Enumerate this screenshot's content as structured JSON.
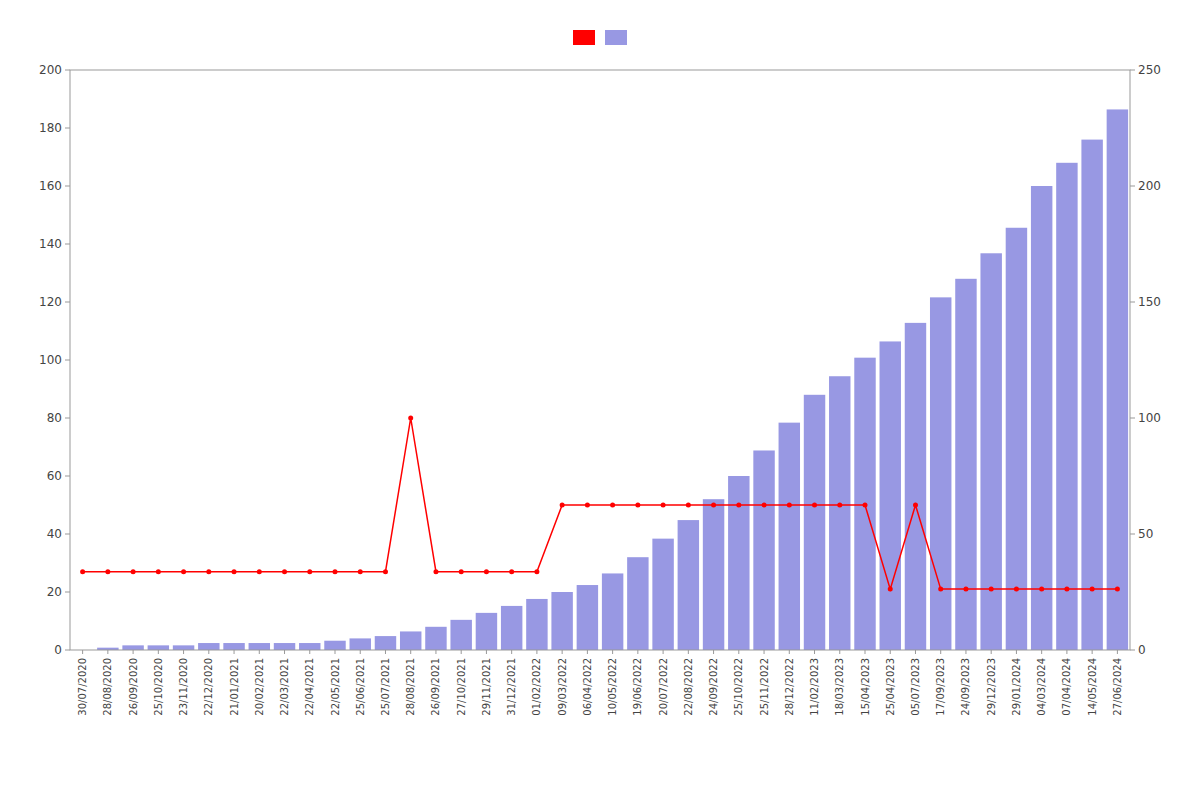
{
  "chart_data": {
    "type": "bar",
    "categories": [
      "30/07/2020",
      "28/08/2020",
      "26/09/2020",
      "25/10/2020",
      "23/11/2020",
      "22/12/2020",
      "21/01/2021",
      "20/02/2021",
      "22/03/2021",
      "22/04/2021",
      "22/05/2021",
      "25/06/2021",
      "25/07/2021",
      "28/08/2021",
      "26/09/2021",
      "27/10/2021",
      "29/11/2021",
      "31/12/2021",
      "01/02/2022",
      "09/03/2022",
      "06/04/2022",
      "10/05/2022",
      "19/06/2022",
      "20/07/2022",
      "22/08/2022",
      "24/09/2022",
      "25/10/2022",
      "25/11/2022",
      "28/12/2022",
      "11/02/2023",
      "18/03/2023",
      "15/04/2023",
      "25/04/2023",
      "05/07/2023",
      "17/09/2023",
      "24/09/2023",
      "29/12/2023",
      "29/01/2024",
      "04/03/2024",
      "07/04/2024",
      "14/05/2024",
      "27/06/2024"
    ],
    "series": [
      {
        "type": "line",
        "color": "#ff0000",
        "marker": "circle",
        "values": [
          27,
          27,
          27,
          27,
          27,
          27,
          27,
          27,
          27,
          27,
          27,
          27,
          27,
          80,
          27,
          27,
          27,
          27,
          27,
          50,
          50,
          50,
          50,
          50,
          50,
          50,
          50,
          50,
          50,
          50,
          50,
          50,
          21,
          50,
          21,
          21,
          21,
          21,
          21,
          21,
          21,
          21
        ]
      },
      {
        "type": "bar",
        "color": "#4444cc",
        "axis": "y2",
        "values": [
          0,
          1,
          2,
          2,
          2,
          3,
          3,
          3,
          3,
          3,
          4,
          5,
          6,
          8,
          10,
          13,
          16,
          19,
          22,
          25,
          28,
          33,
          40,
          48,
          56,
          65,
          75,
          86,
          98,
          110,
          118,
          126,
          133,
          141,
          152,
          160,
          171,
          182,
          200,
          210,
          220,
          233
        ]
      }
    ],
    "ylim": [
      0,
      200
    ],
    "yticks": [
      0,
      20,
      40,
      60,
      80,
      100,
      120,
      140,
      160,
      180,
      200
    ],
    "y2lim": [
      0,
      250
    ],
    "y2ticks": [
      0,
      50,
      100,
      150,
      200,
      250
    ],
    "grid": false,
    "legend": "top"
  }
}
